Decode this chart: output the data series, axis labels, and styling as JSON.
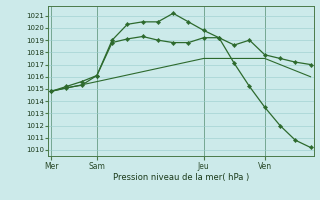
{
  "background_color": "#cceaea",
  "grid_color": "#99cccc",
  "line_color": "#2d6a2d",
  "vline_color": "#4a7a4a",
  "title": "Pression niveau de la mer( hPa )",
  "ylim": [
    1009.5,
    1021.8
  ],
  "xlim": [
    -0.2,
    17.2
  ],
  "yticks": [
    1010,
    1011,
    1012,
    1013,
    1014,
    1015,
    1016,
    1017,
    1018,
    1019,
    1020,
    1021
  ],
  "xtick_labels": [
    "Mer",
    "Sam",
    "Jeu",
    "Ven"
  ],
  "xtick_positions": [
    0,
    3,
    10,
    14
  ],
  "line1_x": [
    0,
    1,
    2,
    3,
    4,
    5,
    6,
    7,
    8,
    9,
    10,
    11,
    12,
    13,
    14,
    15,
    16,
    17
  ],
  "line1_y": [
    1014.8,
    1015.1,
    1015.3,
    1016.1,
    1018.8,
    1019.1,
    1019.3,
    1019.0,
    1018.8,
    1018.8,
    1019.2,
    1019.2,
    1018.6,
    1019.0,
    1017.8,
    1017.5,
    1017.2,
    1017.0
  ],
  "line2_x": [
    0,
    1,
    2,
    3,
    4,
    5,
    6,
    7,
    8,
    9,
    10,
    11,
    12,
    13,
    14,
    15,
    16,
    17
  ],
  "line2_y": [
    1014.8,
    1015.2,
    1015.6,
    1016.1,
    1019.0,
    1020.3,
    1020.5,
    1020.5,
    1021.2,
    1020.5,
    1019.8,
    1019.2,
    1017.1,
    1015.2,
    1013.5,
    1012.0,
    1010.8,
    1010.2
  ],
  "line3_x": [
    0,
    3,
    10,
    14,
    17
  ],
  "line3_y": [
    1014.8,
    1015.6,
    1017.5,
    1017.5,
    1016.0
  ]
}
